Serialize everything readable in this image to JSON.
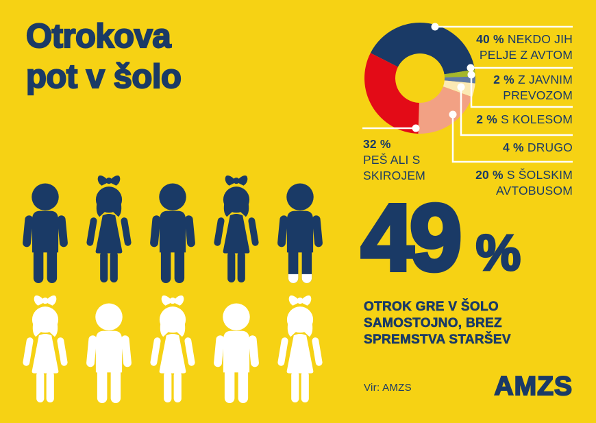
{
  "page": {
    "title_lines": [
      "Otrokova",
      "pot v šolo"
    ],
    "background_color": "#F6D214",
    "accent_navy": "#1A3A66",
    "accent_red": "#E30B17"
  },
  "chart_data": {
    "type": "pie",
    "subtype": "donut",
    "title": "Otrokova pot v šolo",
    "unit": "%",
    "legend_position": "right",
    "start_angle_deg": 297,
    "segments": [
      {
        "value": 40,
        "pct_label": "40 %",
        "label": "NEKDO JIH PELJE Z AVTOM",
        "color": "#1A3A66"
      },
      {
        "value": 2,
        "pct_label": "2 %",
        "label": "Z JAVNIM PREVOZOM",
        "color": "#A5B72B"
      },
      {
        "value": 2,
        "pct_label": "2 %",
        "label": "S KOLESOM",
        "color": "#5F7AA6"
      },
      {
        "value": 4,
        "pct_label": "4 %",
        "label": "DRUGO",
        "color": "#FBE9B4"
      },
      {
        "value": 20,
        "pct_label": "20 %",
        "label": "S ŠOLSKIM AVTOBUSOM",
        "color": "#F2A184"
      },
      {
        "value": 32,
        "pct_label": "32 %",
        "label": "PEŠ ALI S SKIROJEM",
        "color": "#E30B17"
      }
    ]
  },
  "stat": {
    "value": "49",
    "unit": "%",
    "caption": "OTROK GRE V ŠOLO\nSAMOSTOJNO, BREZ\nSPREMSTVA STARŠEV"
  },
  "pictogram": {
    "rows": [
      [
        "boy",
        "girl",
        "boy",
        "girl",
        "boy"
      ],
      [
        "girl",
        "boy",
        "girl",
        "boy",
        "girl"
      ]
    ],
    "row_colors": [
      "#1A3A66",
      "#FFFFFF"
    ],
    "partial_figure": {
      "row": 0,
      "index": 4,
      "detail": "white-feet"
    }
  },
  "source": {
    "label": "Vir: AMZS"
  },
  "logo": {
    "text": "AMZS"
  }
}
